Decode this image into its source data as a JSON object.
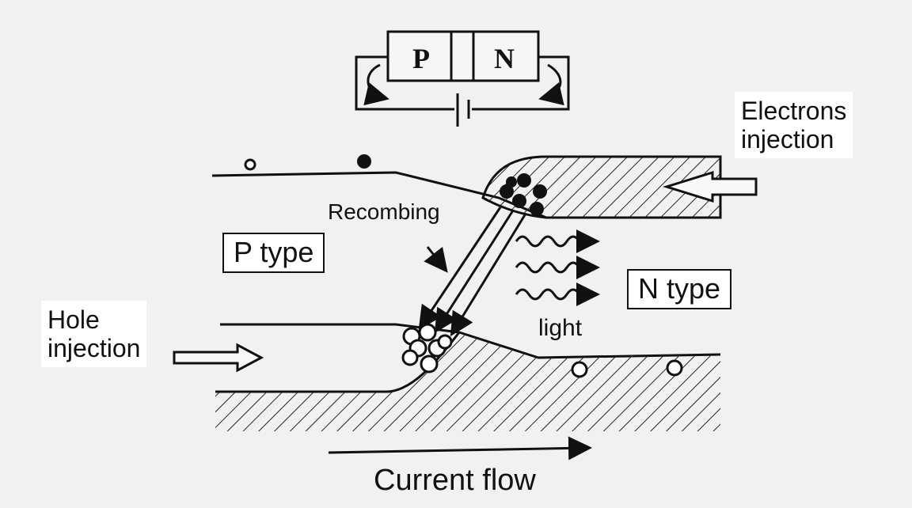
{
  "diagram": {
    "pn_block": {
      "p_label": "P",
      "n_label": "N"
    },
    "labels": {
      "electrons_line1": "Electrons",
      "electrons_line2": "injection",
      "recombing": "Recombing",
      "p_type": "P type",
      "n_type": "N type",
      "hole_line1": "Hole",
      "hole_line2": "injection",
      "light": "light",
      "current_flow": "Current flow"
    }
  },
  "colors": {
    "background": "#f1f1f1",
    "ink": "#111111",
    "label_bg": "#ffffff"
  }
}
